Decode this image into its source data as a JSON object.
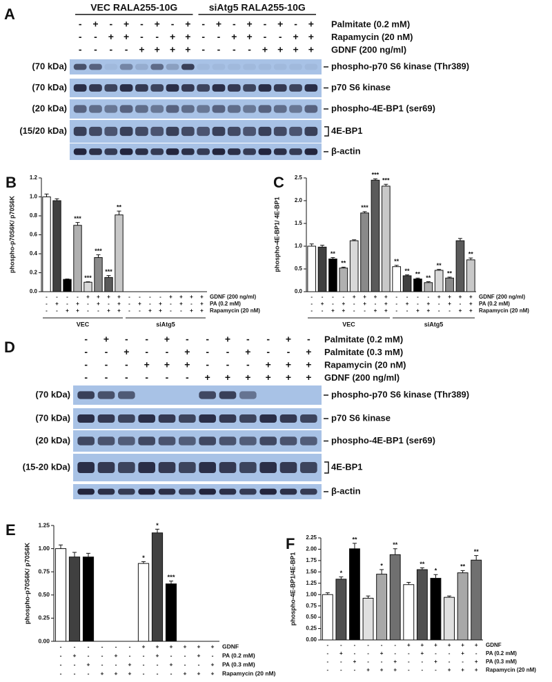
{
  "blots": [
    {
      "panel": "A",
      "groups": [
        "VEC RALA255-10G",
        "siAtg5 RALA255-10G"
      ],
      "conditions": [
        {
          "label": "Palmitate (0.2 mM)",
          "signs": [
            "-",
            "+",
            "-",
            "+",
            "-",
            "+",
            "-",
            "+",
            "-",
            "+",
            "-",
            "+",
            "-",
            "+",
            "-",
            "+"
          ]
        },
        {
          "label": "Rapamycin (20 nM)",
          "signs": [
            "-",
            "-",
            "+",
            "+",
            "-",
            "-",
            "+",
            "+",
            "-",
            "-",
            "+",
            "+",
            "-",
            "-",
            "+",
            "+"
          ]
        },
        {
          "label": "GDNF (200 ng/ml)",
          "signs": [
            "-",
            "-",
            "-",
            "-",
            "+",
            "+",
            "+",
            "+",
            "-",
            "-",
            "-",
            "-",
            "+",
            "+",
            "+",
            "+"
          ]
        }
      ],
      "rows": [
        {
          "size": "(70 kDa)",
          "label": "phospho-p70 S6 kinase (Thr389)"
        },
        {
          "size": "(70 kDa)",
          "label": "p70 S6 kinase"
        },
        {
          "size": "(20 kDa)",
          "label": "phospho-4E-BP1 (ser69)"
        },
        {
          "size": "(15/20 kDa)",
          "label": "4E-BP1",
          "bracket": true
        },
        {
          "label": "β-actin"
        }
      ]
    },
    {
      "panel": "D",
      "conditions": [
        {
          "label": "Palmitate (0.2 mM)",
          "signs": [
            "-",
            "+",
            "-",
            "-",
            "+",
            "-",
            "-",
            "+",
            "-",
            "-",
            "+",
            "-"
          ]
        },
        {
          "label": "Palmitate (0.3 mM)",
          "signs": [
            "-",
            "-",
            "+",
            "-",
            "-",
            "+",
            "-",
            "-",
            "+",
            "-",
            "-",
            "+"
          ]
        },
        {
          "label": "Rapamycin (20 nM)",
          "signs": [
            "-",
            "-",
            "-",
            "+",
            "+",
            "+",
            "-",
            "-",
            "-",
            "+",
            "+",
            "+"
          ]
        },
        {
          "label": "GDNF (200 ng/ml)",
          "signs": [
            "-",
            "-",
            "-",
            "-",
            "-",
            "-",
            "+",
            "+",
            "+",
            "+",
            "+",
            "+"
          ]
        }
      ],
      "rows": [
        {
          "size": "(70 kDa)",
          "label": "phospho-p70 S6 kinase (Thr389)"
        },
        {
          "size": "(70 kDa)",
          "label": "p70 S6 kinase"
        },
        {
          "size": "(20 kDa)",
          "label": "phospho-4E-BP1 (ser69)"
        },
        {
          "size": "(15-20 kDa)",
          "label": "4E-BP1",
          "bracket": true
        },
        {
          "label": "β-actin"
        }
      ]
    }
  ],
  "chart_data": [
    {
      "type": "bar",
      "panel": "B",
      "y_label": "phospho-p70S6K/ p70S6K",
      "values": [
        1.0,
        0.96,
        0.13,
        0.7,
        0.1,
        0.36,
        0.15,
        0.81,
        null,
        null,
        null,
        null,
        null,
        null,
        null,
        null
      ],
      "errors": [
        0.03,
        0.02,
        0.005,
        0.03,
        0.005,
        0.03,
        0.02,
        0.04,
        null,
        null,
        null,
        null,
        null,
        null,
        null,
        null
      ],
      "annotations": [
        null,
        null,
        null,
        "***",
        "***",
        "***",
        "***",
        "**",
        null,
        null,
        null,
        null,
        null,
        null,
        null,
        null
      ],
      "colors": [
        "#ffffff",
        "#404040",
        "#000000",
        "#b0b0b0",
        "#d8d8d8",
        "#8a8a8a",
        "#5a5a5a",
        "#c8c8c8",
        "#ffffff",
        "#404040",
        "#000000",
        "#b0b0b0",
        "#d8d8d8",
        "#8a8a8a",
        "#5a5a5a",
        "#c8c8c8"
      ],
      "ylim": [
        0,
        1.2
      ],
      "yticks": [
        {
          "value": 0,
          "label": "0.0"
        },
        0.2,
        0.4,
        0.6,
        0.8,
        {
          "value": 1,
          "label": "1.0"
        },
        1.2
      ],
      "conditions": [
        {
          "label": "GDNF (200 ng/ml)",
          "signs": [
            "-",
            "-",
            "-",
            "-",
            "+",
            "+",
            "+",
            "+",
            "-",
            "-",
            "-",
            "-",
            "+",
            "+",
            "+",
            "+"
          ]
        },
        {
          "label": "PA (0.2 mM)",
          "signs": [
            "-",
            "+",
            "-",
            "+",
            "-",
            "+",
            "-",
            "+",
            "-",
            "+",
            "-",
            "+",
            "-",
            "+",
            "-",
            "+"
          ]
        },
        {
          "label": "Rapamycin (20 nM)",
          "signs": [
            "-",
            "-",
            "+",
            "+",
            "-",
            "-",
            "+",
            "+",
            "-",
            "-",
            "+",
            "+",
            "-",
            "-",
            "+",
            "+"
          ]
        }
      ],
      "groups": [
        "VEC",
        "siAtg5"
      ]
    },
    {
      "type": "bar",
      "panel": "C",
      "y_label": "phospho-4E-BP1/ 4E-BP1",
      "values": [
        1.0,
        0.98,
        0.72,
        0.52,
        1.12,
        1.73,
        2.45,
        2.32,
        0.55,
        0.35,
        0.28,
        0.2,
        0.47,
        0.3,
        1.12,
        0.7
      ],
      "errors": [
        0.05,
        0.04,
        0.03,
        0.02,
        0.02,
        0.03,
        0.03,
        0.04,
        0.03,
        0.02,
        0.02,
        0.02,
        0.02,
        0.02,
        0.05,
        0.04
      ],
      "annotations": [
        null,
        null,
        "**",
        "**",
        null,
        "***",
        "***",
        "***",
        "**",
        "**",
        "**",
        "**",
        "**",
        "**",
        null,
        "**"
      ],
      "colors": [
        "#ffffff",
        "#404040",
        "#000000",
        "#b0b0b0",
        "#d8d8d8",
        "#8a8a8a",
        "#5a5a5a",
        "#c8c8c8",
        "#ffffff",
        "#404040",
        "#000000",
        "#b0b0b0",
        "#d8d8d8",
        "#8a8a8a",
        "#5a5a5a",
        "#c8c8c8"
      ],
      "ylim": [
        0,
        2.5
      ],
      "yticks": [
        {
          "value": 0,
          "label": "0.0"
        },
        0.5,
        {
          "value": 1,
          "label": "1.0"
        },
        1.5,
        {
          "value": 2,
          "label": "2.0"
        },
        2.5
      ],
      "conditions": [
        {
          "label": "GDNF (200 ng/ml)",
          "signs": [
            "-",
            "-",
            "-",
            "-",
            "+",
            "+",
            "+",
            "+",
            "-",
            "-",
            "-",
            "-",
            "+",
            "+",
            "+",
            "+"
          ]
        },
        {
          "label": "PA (0.2 mM)",
          "signs": [
            "-",
            "+",
            "-",
            "+",
            "-",
            "+",
            "-",
            "+",
            "-",
            "+",
            "-",
            "+",
            "-",
            "+",
            "-",
            "+"
          ]
        },
        {
          "label": "Rapamycin (20 nM)",
          "signs": [
            "-",
            "-",
            "+",
            "+",
            "-",
            "-",
            "+",
            "+",
            "-",
            "-",
            "+",
            "+",
            "-",
            "-",
            "+",
            "+"
          ]
        }
      ],
      "groups": [
        "VEC",
        "siAtg5"
      ]
    },
    {
      "type": "bar",
      "panel": "E",
      "y_label": "phospho-p70S6K/ p70S6K",
      "values": [
        1.0,
        0.91,
        0.91,
        null,
        null,
        null,
        0.84,
        1.17,
        0.62,
        null,
        null,
        null
      ],
      "errors": [
        0.04,
        0.05,
        0.04,
        null,
        null,
        null,
        0.02,
        0.04,
        0.03,
        null,
        null,
        null
      ],
      "annotations": [
        null,
        null,
        null,
        null,
        null,
        null,
        "*",
        "*",
        "***",
        null,
        null,
        null
      ],
      "colors": [
        "#ffffff",
        "#404040",
        "#000000",
        "#e0e0e0",
        "#a8a8a8",
        "#707070",
        "#ffffff",
        "#404040",
        "#000000",
        "#e0e0e0",
        "#a8a8a8",
        "#707070"
      ],
      "ylim": [
        0,
        1.25
      ],
      "yticks": [
        {
          "value": 0,
          "label": "0.00"
        },
        {
          "value": 0.25,
          "label": "0.25"
        },
        {
          "value": 0.5,
          "label": "0.50"
        },
        {
          "value": 0.75,
          "label": "0.75"
        },
        {
          "value": 1,
          "label": "1.00"
        },
        {
          "value": 1.25,
          "label": "1.25"
        }
      ],
      "conditions": [
        {
          "label": "GDNF",
          "signs": [
            "-",
            "-",
            "-",
            "-",
            "-",
            "-",
            "+",
            "+",
            "+",
            "+",
            "+",
            "+"
          ]
        },
        {
          "label": "PA (0.2 mM)",
          "signs": [
            "-",
            "+",
            "-",
            "-",
            "+",
            "-",
            "-",
            "+",
            "-",
            "-",
            "+",
            "-"
          ]
        },
        {
          "label": "PA (0.3 mM)",
          "signs": [
            "-",
            "-",
            "+",
            "-",
            "-",
            "+",
            "-",
            "-",
            "+",
            "-",
            "-",
            "+"
          ]
        },
        {
          "label": "Rapamycin (20 nM)",
          "signs": [
            "-",
            "-",
            "-",
            "+",
            "+",
            "+",
            "-",
            "-",
            "-",
            "+",
            "+",
            "+"
          ]
        }
      ]
    },
    {
      "type": "bar",
      "panel": "F",
      "y_label": "phospho-4E-BP1/4E-BP1",
      "values": [
        1.0,
        1.34,
        2.01,
        0.92,
        1.45,
        1.88,
        1.22,
        1.55,
        1.36,
        0.94,
        1.48,
        1.76
      ],
      "errors": [
        0.04,
        0.05,
        0.12,
        0.05,
        0.1,
        0.13,
        0.05,
        0.04,
        0.08,
        0.03,
        0.05,
        0.1
      ],
      "annotations": [
        null,
        "*",
        "**",
        null,
        "*",
        "**",
        null,
        "**",
        "*",
        null,
        "**",
        "**"
      ],
      "colors": [
        "#ffffff",
        "#505050",
        "#000000",
        "#e0e0e0",
        "#a8a8a8",
        "#707070",
        "#ffffff",
        "#505050",
        "#000000",
        "#e0e0e0",
        "#a8a8a8",
        "#707070"
      ],
      "ylim": [
        0,
        2.25
      ],
      "yticks": [
        {
          "value": 0,
          "label": "0.00"
        },
        {
          "value": 0.25,
          "label": "0.25"
        },
        {
          "value": 0.5,
          "label": "0.50"
        },
        {
          "value": 0.75,
          "label": "0.75"
        },
        {
          "value": 1,
          "label": "1.00"
        },
        {
          "value": 1.25,
          "label": "1.25"
        },
        {
          "value": 1.5,
          "label": "1.50"
        },
        {
          "value": 1.75,
          "label": "1.75"
        },
        {
          "value": 2,
          "label": "2.00"
        },
        {
          "value": 2.25,
          "label": "2.25"
        }
      ],
      "conditions": [
        {
          "label": "GDNF",
          "signs": [
            "-",
            "-",
            "-",
            "-",
            "-",
            "-",
            "+",
            "+",
            "+",
            "+",
            "+",
            "+"
          ]
        },
        {
          "label": "PA (0.2 mM)",
          "signs": [
            "-",
            "+",
            "-",
            "-",
            "+",
            "-",
            "-",
            "+",
            "-",
            "-",
            "+",
            "-"
          ]
        },
        {
          "label": "PA (0.3 mM)",
          "signs": [
            "-",
            "-",
            "+",
            "-",
            "-",
            "+",
            "-",
            "-",
            "+",
            "-",
            "-",
            "+"
          ]
        },
        {
          "label": "Rapamycin (20 nM)",
          "signs": [
            "-",
            "-",
            "-",
            "+",
            "+",
            "+",
            "-",
            "-",
            "-",
            "+",
            "+",
            "+"
          ]
        }
      ]
    }
  ]
}
